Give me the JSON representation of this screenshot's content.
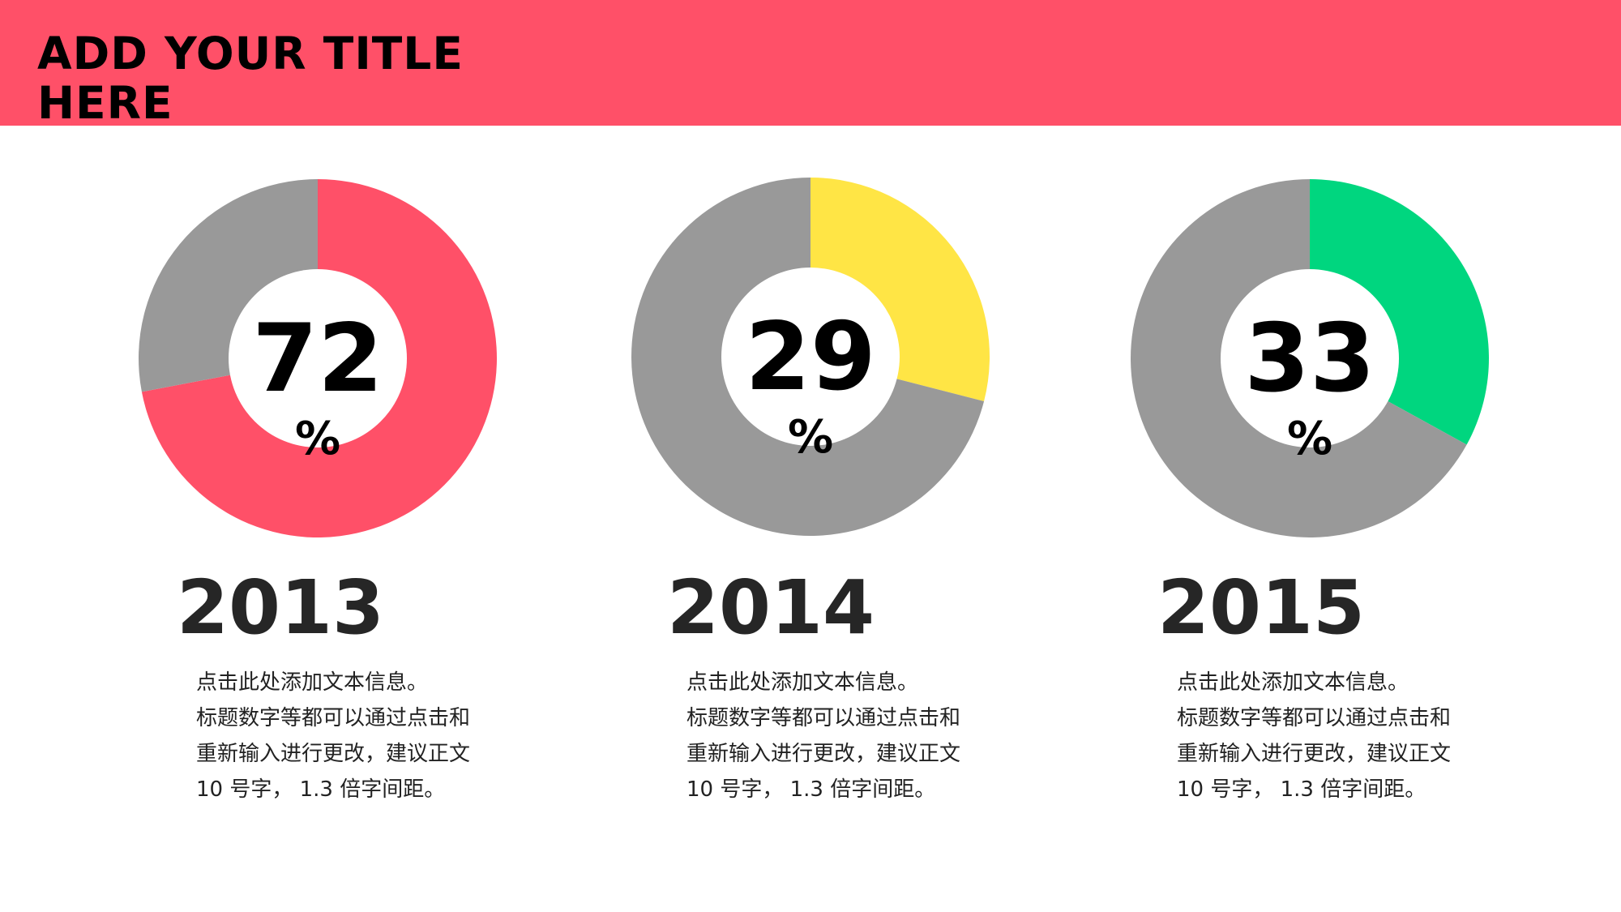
{
  "header": {
    "title": "ADD YOUR TITLE\nHERE",
    "background_color": "#ff5068"
  },
  "chart_data": [
    {
      "type": "pie",
      "style": "donut",
      "categories": [
        "2013",
        "remaining"
      ],
      "values": [
        72,
        28
      ],
      "colors": [
        "#ff5068",
        "#999999"
      ],
      "center_label": "72",
      "center_unit": "%",
      "year": "2013",
      "description": [
        "点击此处添加文本信息。",
        "标题数字等都可以通过点击和",
        "重新输入进行更改，建议正文",
        "10 号字， 1.3 倍字间距。"
      ]
    },
    {
      "type": "pie",
      "style": "donut",
      "categories": [
        "2014",
        "remaining"
      ],
      "values": [
        29,
        71
      ],
      "colors": [
        "#ffe545",
        "#999999"
      ],
      "center_label": "29",
      "center_unit": "%",
      "year": "2014",
      "description": [
        "点击此处添加文本信息。",
        "标题数字等都可以通过点击和",
        "重新输入进行更改，建议正文",
        "10 号字， 1.3 倍字间距。"
      ]
    },
    {
      "type": "pie",
      "style": "donut",
      "categories": [
        "2015",
        "remaining"
      ],
      "values": [
        33,
        67
      ],
      "colors": [
        "#00d67f",
        "#999999"
      ],
      "center_label": "33",
      "center_unit": "%",
      "year": "2015",
      "description": [
        "点击此处添加文本信息。",
        "标题数字等都可以通过点击和",
        "重新输入进行更改，建议正文",
        "10 号字， 1.3 倍字间距。"
      ]
    }
  ]
}
